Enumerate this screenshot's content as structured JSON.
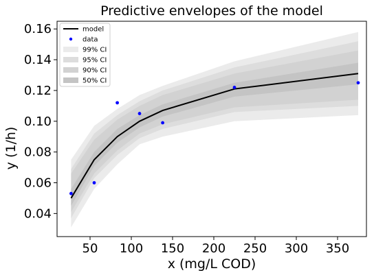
{
  "chart_data": {
    "type": "line",
    "title": "Predictive envelopes of the model",
    "xlabel": "x (mg/L COD)",
    "ylabel": "y (1/h)",
    "xlim": [
      10,
      385
    ],
    "ylim": [
      0.025,
      0.165
    ],
    "xticks": [
      50,
      100,
      150,
      200,
      250,
      300,
      350
    ],
    "yticks": [
      0.04,
      0.06,
      0.08,
      0.1,
      0.12,
      0.14,
      0.16
    ],
    "xtick_labels": [
      "50",
      "100",
      "150",
      "200",
      "250",
      "300",
      "350"
    ],
    "ytick_labels": [
      "0.04",
      "0.06",
      "0.08",
      "0.10",
      "0.12",
      "0.14",
      "0.16"
    ],
    "grid": false,
    "legend_position": "top-left",
    "x": [
      27,
      55,
      83,
      110,
      138,
      225,
      375
    ],
    "series": [
      {
        "name": "model",
        "kind": "line",
        "color": "#000000",
        "y": [
          0.05,
          0.075,
          0.09,
          0.1,
          0.107,
          0.121,
          0.131
        ]
      },
      {
        "name": "data",
        "kind": "scatter",
        "color": "#0000ff",
        "x": [
          27,
          55,
          83,
          110,
          138,
          225,
          375
        ],
        "y": [
          0.053,
          0.06,
          0.112,
          0.105,
          0.099,
          0.122,
          0.125
        ]
      }
    ],
    "bands": [
      {
        "name": "99% CI",
        "color": "#ebebeb",
        "lower": [
          0.031,
          0.056,
          0.072,
          0.085,
          0.09,
          0.1,
          0.104
        ],
        "upper": [
          0.075,
          0.097,
          0.108,
          0.117,
          0.123,
          0.139,
          0.158
        ]
      },
      {
        "name": "95% CI",
        "color": "#dddddd",
        "lower": [
          0.037,
          0.063,
          0.078,
          0.089,
          0.095,
          0.106,
          0.11
        ],
        "upper": [
          0.069,
          0.092,
          0.104,
          0.113,
          0.12,
          0.135,
          0.152
        ]
      },
      {
        "name": "90% CI",
        "color": "#d2d2d2",
        "lower": [
          0.041,
          0.066,
          0.081,
          0.092,
          0.098,
          0.109,
          0.114
        ],
        "upper": [
          0.066,
          0.088,
          0.101,
          0.11,
          0.117,
          0.131,
          0.146
        ]
      },
      {
        "name": "50% CI",
        "color": "#c4c4c4",
        "lower": [
          0.045,
          0.071,
          0.086,
          0.096,
          0.103,
          0.116,
          0.124
        ],
        "upper": [
          0.056,
          0.08,
          0.095,
          0.104,
          0.111,
          0.125,
          0.138
        ]
      }
    ],
    "legend": [
      "model",
      "data",
      "99% CI",
      "95% CI",
      "90% CI",
      "50% CI"
    ]
  }
}
